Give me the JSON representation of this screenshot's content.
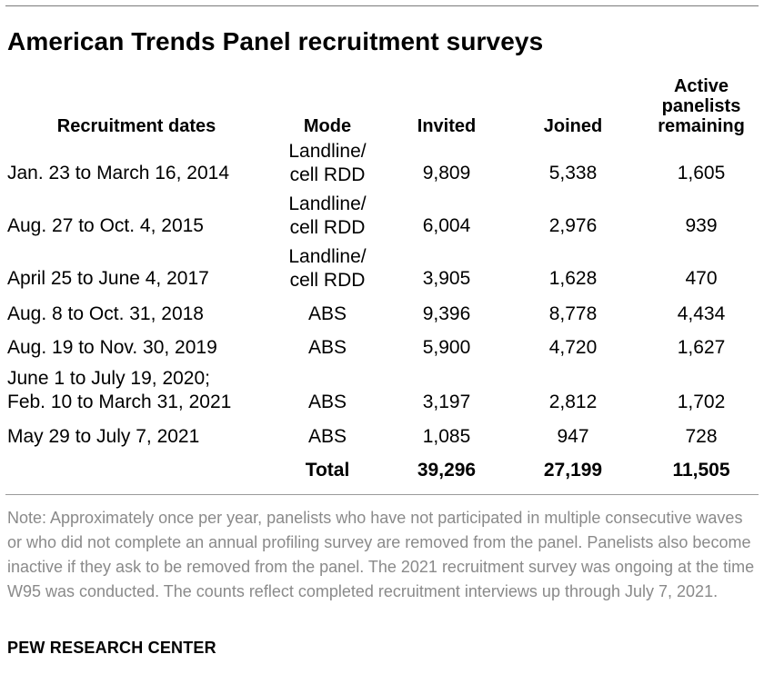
{
  "title": "American Trends Panel recruitment surveys",
  "headers": {
    "dates": "Recruitment dates",
    "mode": "Mode",
    "invited": "Invited",
    "joined": "Joined",
    "active": [
      "Active",
      "panelists",
      "remaining"
    ]
  },
  "rows": [
    {
      "dates": [
        "Jan. 23 to March 16, 2014"
      ],
      "mode": [
        "Landline/",
        "cell RDD"
      ],
      "invited": "9,809",
      "joined": "5,338",
      "active": "1,605"
    },
    {
      "dates": [
        "Aug. 27 to Oct. 4, 2015"
      ],
      "mode": [
        "Landline/",
        "cell RDD"
      ],
      "invited": "6,004",
      "joined": "2,976",
      "active": "939"
    },
    {
      "dates": [
        "April 25 to June 4, 2017"
      ],
      "mode": [
        "Landline/",
        "cell RDD"
      ],
      "invited": "3,905",
      "joined": "1,628",
      "active": "470"
    },
    {
      "dates": [
        "Aug. 8 to Oct. 31, 2018"
      ],
      "mode": [
        "ABS"
      ],
      "invited": "9,396",
      "joined": "8,778",
      "active": "4,434"
    },
    {
      "dates": [
        "Aug. 19 to Nov. 30, 2019"
      ],
      "mode": [
        "ABS"
      ],
      "invited": "5,900",
      "joined": "4,720",
      "active": "1,627"
    },
    {
      "dates": [
        "June 1 to July 19, 2020;",
        "Feb. 10 to March 31, 2021"
      ],
      "mode": [
        "ABS"
      ],
      "invited": "3,197",
      "joined": "2,812",
      "active": "1,702"
    },
    {
      "dates": [
        "May 29 to July 7, 2021"
      ],
      "mode": [
        "ABS"
      ],
      "invited": "1,085",
      "joined": "947",
      "active": "728"
    }
  ],
  "total": {
    "label": "Total",
    "invited": "39,296",
    "joined": "27,199",
    "active": "11,505"
  },
  "note": "Note: Approximately once per year, panelists who have not participated in multiple consecutive waves or who did not complete an annual profiling survey are removed from the panel. Panelists also become inactive if they ask to be removed from the panel. The 2021 recruitment survey was ongoing at the time W95 was conducted. The counts reflect completed recruitment interviews up through July 7, 2021.",
  "source": "PEW RESEARCH CENTER"
}
